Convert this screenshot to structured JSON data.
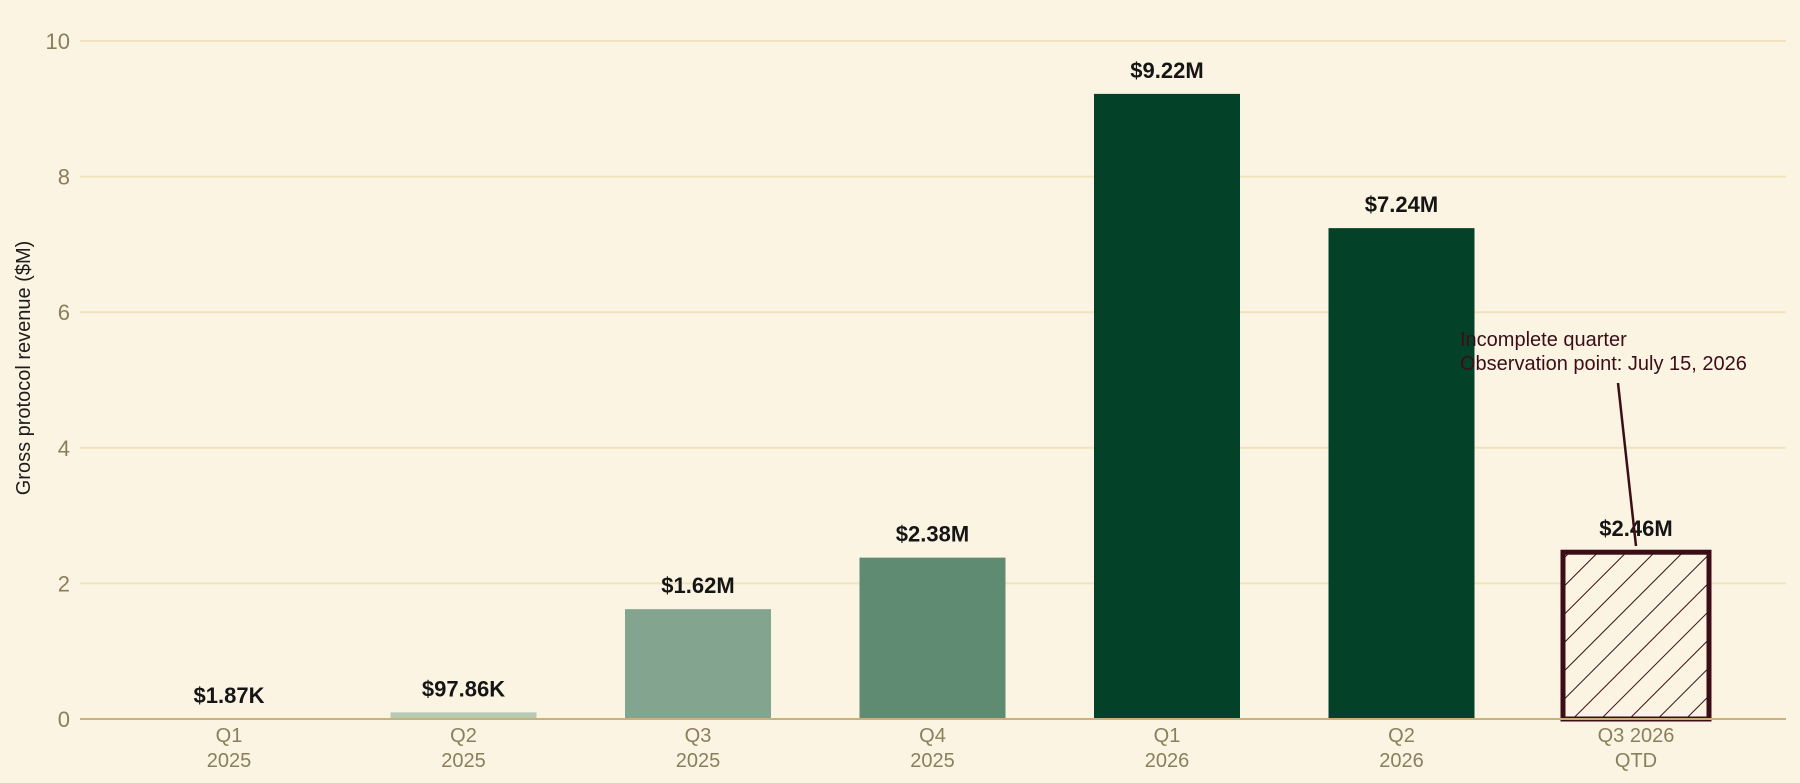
{
  "chart_data": {
    "type": "bar",
    "ylabel": "Gross protocol revenue ($M)",
    "ylim": [
      0,
      10
    ],
    "yticks": [
      0,
      2,
      4,
      6,
      8,
      10
    ],
    "grid": "horizontal",
    "categories": [
      {
        "line1": "Q1",
        "line2": "2025"
      },
      {
        "line1": "Q2",
        "line2": "2025"
      },
      {
        "line1": "Q3",
        "line2": "2025"
      },
      {
        "line1": "Q4",
        "line2": "2025"
      },
      {
        "line1": "Q1",
        "line2": "2026"
      },
      {
        "line1": "Q2",
        "line2": "2026"
      },
      {
        "line1": "Q3 2026",
        "line2": "QTD"
      }
    ],
    "values": [
      0.00187,
      0.09786,
      1.62,
      2.38,
      9.22,
      7.24,
      2.46
    ],
    "value_labels": [
      "$1.87K",
      "$97.86K",
      "$1.62M",
      "$2.38M",
      "$9.22M",
      "$7.24M",
      "$2.46M"
    ],
    "bar_colors": [
      "#e3e8d4",
      "#b6c9b2",
      "#83a590",
      "#5e8b72",
      "#034228",
      "#034228",
      "#fbf4e2"
    ],
    "incomplete_index": 6,
    "incomplete_style": {
      "edge_color": "#3b0d17",
      "hatch_color": "#3b0d17"
    },
    "annotation": {
      "line1": "Incomplete quarter",
      "line2": "Observation point: July 15, 2026"
    }
  }
}
